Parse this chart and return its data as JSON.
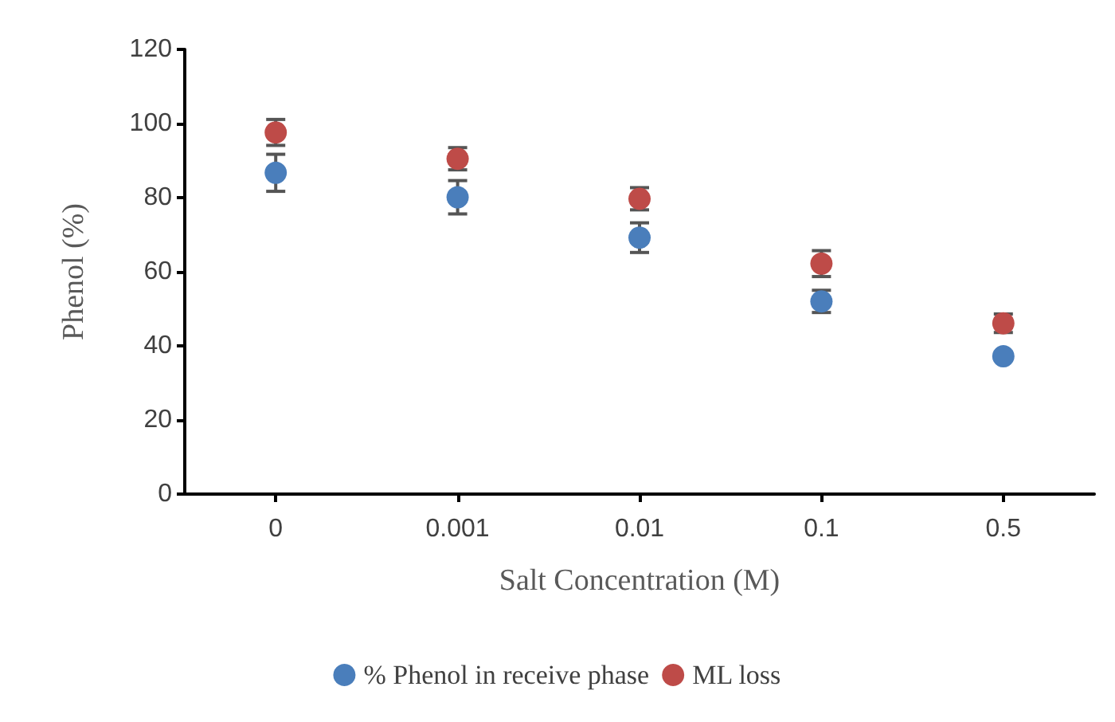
{
  "chart_data": {
    "type": "scatter",
    "xlabel": "Salt Concentration (M)",
    "ylabel": "Phenol (%)",
    "categories": [
      "0",
      "0.001",
      "0.01",
      "0.1",
      "0.5"
    ],
    "series": [
      {
        "name": "% Phenol in receive phase",
        "color": "#4a7ebb",
        "values": [
          86.7,
          80.1,
          69.2,
          52.0,
          37.2
        ],
        "errors": [
          5,
          4.5,
          4,
          3,
          null
        ]
      },
      {
        "name": "ML loss",
        "color": "#be4b48",
        "values": [
          97.6,
          90.5,
          79.7,
          62.2,
          46.1
        ],
        "errors": [
          3.5,
          3,
          3,
          3.5,
          2.5
        ]
      }
    ],
    "ylim": [
      0,
      120
    ],
    "yticks": [
      0,
      20,
      40,
      60,
      80,
      100,
      120
    ],
    "grid": false,
    "legend": "bottom",
    "marker": "circle"
  }
}
